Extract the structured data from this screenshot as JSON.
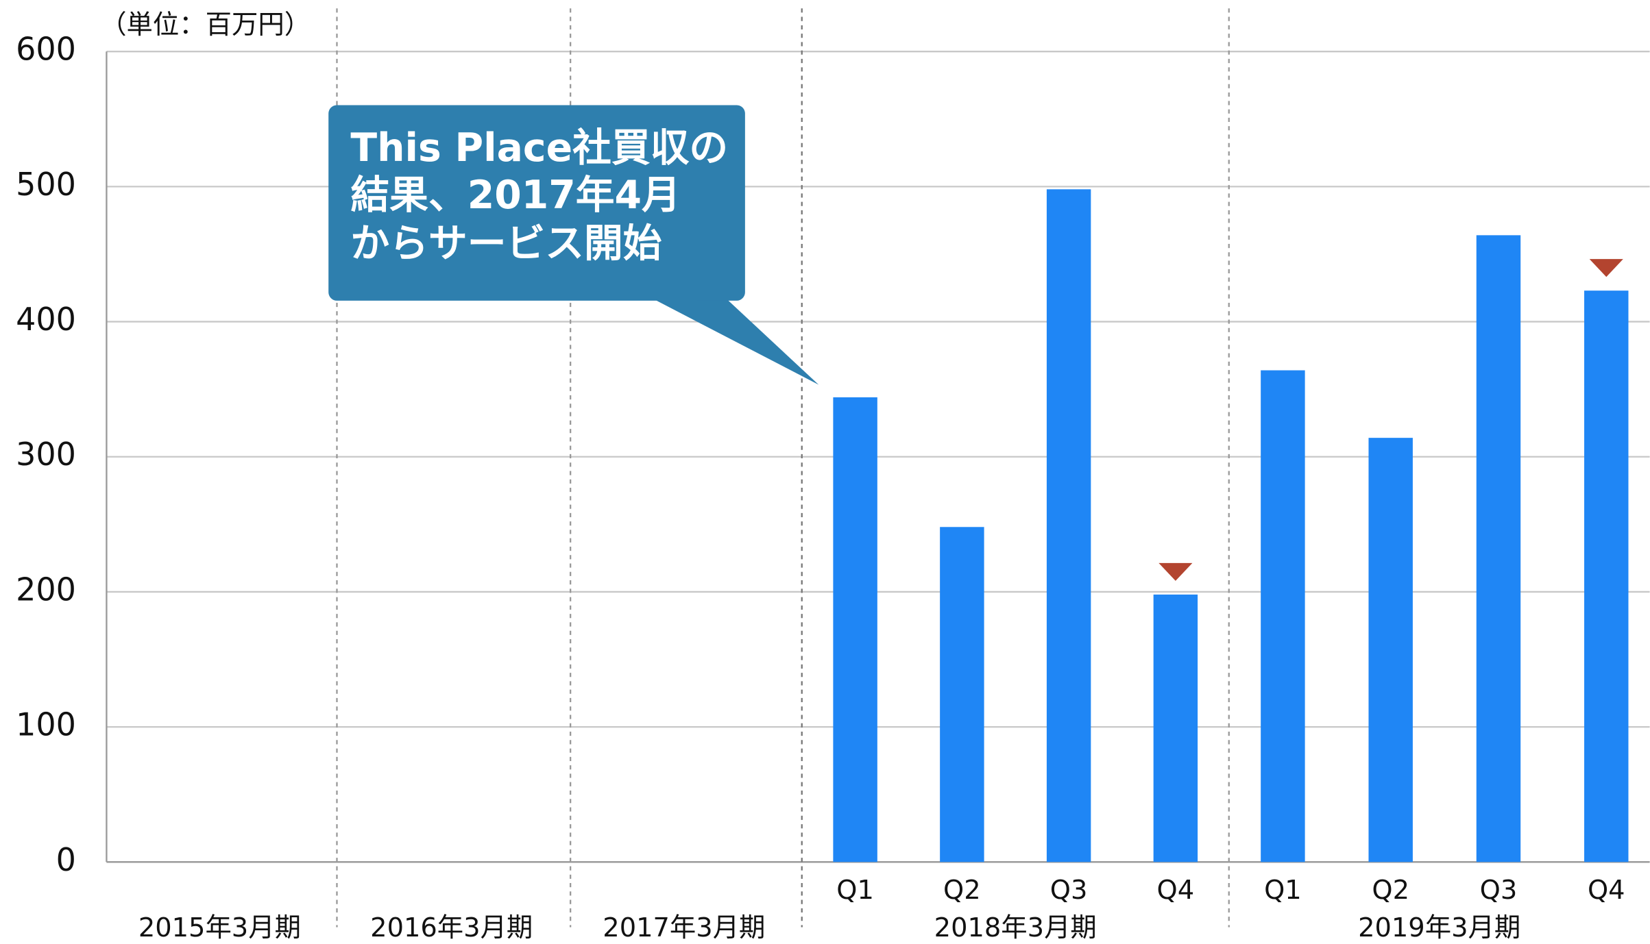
{
  "chart_data": {
    "type": "bar",
    "y_axis_label": "（単位：百万円）",
    "annotation": [
      "This Place社買収の",
      "結果、2017年4月",
      "からサービス開始"
    ],
    "color": "#1f86f5",
    "ylim": [
      0,
      600
    ],
    "yticks": [
      0,
      100,
      200,
      300,
      400,
      500,
      600
    ],
    "grid": true,
    "groups": [
      {
        "name": "2015年3月期",
        "categories": [],
        "values": []
      },
      {
        "name": "2016年3月期",
        "categories": [],
        "values": []
      },
      {
        "name": "2017年3月期",
        "categories": [],
        "values": []
      },
      {
        "name": "2018年3月期",
        "categories": [
          "Q1",
          "Q2",
          "Q3",
          "Q4"
        ],
        "values": [
          344,
          248,
          498,
          198
        ]
      },
      {
        "name": "2019年3月期",
        "categories": [
          "Q1",
          "Q2",
          "Q3",
          "Q4"
        ],
        "values": [
          364,
          314,
          464,
          423
        ]
      }
    ]
  }
}
